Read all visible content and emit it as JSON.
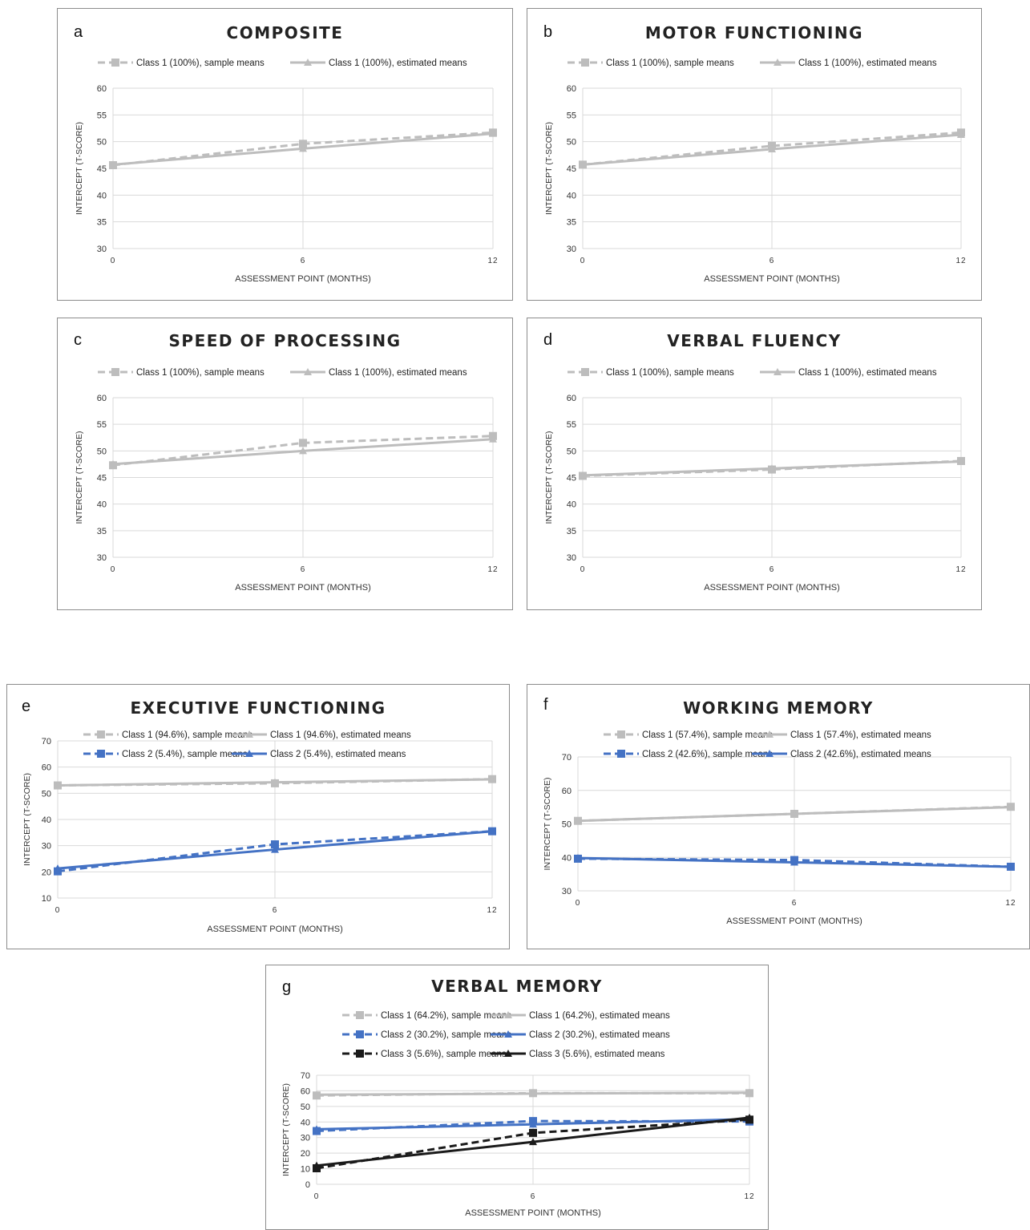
{
  "colors": {
    "class1": "#bdbdbd",
    "class2": "#4472c4",
    "class3": "#1a1a1a",
    "grid": "#d9d9d9"
  },
  "chart_data": [
    {
      "id": "a",
      "panel_label": "a",
      "type": "line",
      "title": "COMPOSITE",
      "xlabel": "ASSESSMENT POINT (MONTHS)",
      "ylabel": "INTERCEPT (T-SCORE)",
      "x": [
        0,
        6,
        12
      ],
      "ylim": [
        30,
        60
      ],
      "yticks": [
        30,
        35,
        40,
        45,
        50,
        55,
        60
      ],
      "grid": true,
      "legend_position": "top",
      "series": [
        {
          "name": "Class 1 (100%), sample means",
          "values": [
            45.6,
            49.6,
            51.7
          ],
          "color": "#bdbdbd",
          "dashed": true,
          "marker": "square"
        },
        {
          "name": "Class 1 (100%), estimated means",
          "values": [
            45.7,
            48.7,
            51.5
          ],
          "color": "#bdbdbd",
          "dashed": false,
          "marker": "triangle"
        }
      ]
    },
    {
      "id": "b",
      "panel_label": "b",
      "type": "line",
      "title": "MOTOR FUNCTIONING",
      "xlabel": "ASSESSMENT POINT (MONTHS)",
      "ylabel": "INTERCEPT (T-SCORE)",
      "x": [
        0,
        6,
        12
      ],
      "ylim": [
        30,
        60
      ],
      "yticks": [
        30,
        35,
        40,
        45,
        50,
        55,
        60
      ],
      "grid": true,
      "legend_position": "top",
      "series": [
        {
          "name": "Class 1 (100%), sample means",
          "values": [
            45.7,
            49.2,
            51.7
          ],
          "color": "#bdbdbd",
          "dashed": true,
          "marker": "square"
        },
        {
          "name": "Class 1 (100%), estimated means",
          "values": [
            45.7,
            48.6,
            51.3
          ],
          "color": "#bdbdbd",
          "dashed": false,
          "marker": "triangle"
        }
      ]
    },
    {
      "id": "c",
      "panel_label": "c",
      "type": "line",
      "title": "SPEED OF PROCESSING",
      "xlabel": "ASSESSMENT POINT (MONTHS)",
      "ylabel": "INTERCEPT (T-SCORE)",
      "x": [
        0,
        6,
        12
      ],
      "ylim": [
        30,
        60
      ],
      "yticks": [
        30,
        35,
        40,
        45,
        50,
        55,
        60
      ],
      "grid": true,
      "legend_position": "top",
      "series": [
        {
          "name": "Class 1 (100%), sample means",
          "values": [
            47.3,
            51.5,
            52.8
          ],
          "color": "#bdbdbd",
          "dashed": true,
          "marker": "square"
        },
        {
          "name": "Class 1 (100%), estimated means",
          "values": [
            47.5,
            50.0,
            52.2
          ],
          "color": "#bdbdbd",
          "dashed": false,
          "marker": "triangle"
        }
      ]
    },
    {
      "id": "d",
      "panel_label": "d",
      "type": "line",
      "title": "VERBAL FLUENCY",
      "xlabel": "ASSESSMENT POINT (MONTHS)",
      "ylabel": "INTERCEPT (T-SCORE)",
      "x": [
        0,
        6,
        12
      ],
      "ylim": [
        30,
        60
      ],
      "yticks": [
        30,
        35,
        40,
        45,
        50,
        55,
        60
      ],
      "grid": true,
      "legend_position": "top",
      "series": [
        {
          "name": "Class 1 (100%), sample means",
          "values": [
            45.3,
            46.5,
            48.1
          ],
          "color": "#bdbdbd",
          "dashed": true,
          "marker": "square"
        },
        {
          "name": "Class 1 (100%), estimated means",
          "values": [
            45.4,
            46.7,
            48.0
          ],
          "color": "#bdbdbd",
          "dashed": false,
          "marker": "triangle"
        }
      ]
    },
    {
      "id": "e",
      "panel_label": "e",
      "type": "line",
      "title": "EXECUTIVE FUNCTIONING",
      "xlabel": "ASSESSMENT POINT (MONTHS)",
      "ylabel": "INTERCEPT (T-SCORE)",
      "x": [
        0,
        6,
        12
      ],
      "ylim": [
        10,
        70
      ],
      "yticks": [
        10,
        20,
        30,
        40,
        50,
        60,
        70
      ],
      "grid": true,
      "legend_position": "top",
      "series": [
        {
          "name": "Class 1 (94.6%), sample means",
          "values": [
            53.0,
            53.8,
            55.4
          ],
          "color": "#bdbdbd",
          "dashed": true,
          "marker": "square"
        },
        {
          "name": "Class 1 (94.6%), estimated means",
          "values": [
            53.0,
            54.2,
            55.3
          ],
          "color": "#bdbdbd",
          "dashed": false,
          "marker": "triangle"
        },
        {
          "name": "Class 2 (5.4%), sample means",
          "values": [
            20.2,
            30.5,
            35.5
          ],
          "color": "#4472c4",
          "dashed": true,
          "marker": "square"
        },
        {
          "name": "Class 2 (5.4%), estimated means",
          "values": [
            21.3,
            28.5,
            35.5
          ],
          "color": "#4472c4",
          "dashed": false,
          "marker": "triangle"
        }
      ]
    },
    {
      "id": "f",
      "panel_label": "f",
      "type": "line",
      "title": "WORKING MEMORY",
      "xlabel": "ASSESSMENT POINT (MONTHS)",
      "ylabel": "INTERCEPT (T-SCORE)",
      "x": [
        0,
        6,
        12
      ],
      "ylim": [
        30,
        70
      ],
      "yticks": [
        30,
        40,
        50,
        60,
        70
      ],
      "grid": true,
      "legend_position": "top",
      "series": [
        {
          "name": "Class 1 (57.4%), sample means",
          "values": [
            50.9,
            53.0,
            55.1
          ],
          "color": "#bdbdbd",
          "dashed": true,
          "marker": "square"
        },
        {
          "name": "Class 1 (57.4%), estimated means",
          "values": [
            50.9,
            53.0,
            55.0
          ],
          "color": "#bdbdbd",
          "dashed": false,
          "marker": "triangle"
        },
        {
          "name": "Class 2 (42.6%), sample means",
          "values": [
            39.6,
            39.2,
            37.2
          ],
          "color": "#4472c4",
          "dashed": true,
          "marker": "square"
        },
        {
          "name": "Class 2 (42.6%), estimated means",
          "values": [
            39.8,
            38.5,
            37.2
          ],
          "color": "#4472c4",
          "dashed": false,
          "marker": "triangle"
        }
      ]
    },
    {
      "id": "g",
      "panel_label": "g",
      "type": "line",
      "title": "VERBAL MEMORY",
      "xlabel": "ASSESSMENT POINT (MONTHS)",
      "ylabel": "INTERCEPT (T-SCORE)",
      "x": [
        0,
        6,
        12
      ],
      "ylim": [
        0,
        70
      ],
      "yticks": [
        0,
        10,
        20,
        30,
        40,
        50,
        60,
        70
      ],
      "grid": true,
      "legend_position": "top",
      "series": [
        {
          "name": "Class 1 (64.2%), sample means",
          "values": [
            57.0,
            58.5,
            58.5
          ],
          "color": "#bdbdbd",
          "dashed": true,
          "marker": "square"
        },
        {
          "name": "Class 1 (64.2%), estimated means",
          "values": [
            57.5,
            58.2,
            58.8
          ],
          "color": "#bdbdbd",
          "dashed": false,
          "marker": "triangle"
        },
        {
          "name": "Class 2 (30.2%), sample means",
          "values": [
            34.2,
            40.6,
            40.3
          ],
          "color": "#4472c4",
          "dashed": true,
          "marker": "square"
        },
        {
          "name": "Class 2 (30.2%), estimated means",
          "values": [
            35.3,
            38.5,
            41.8
          ],
          "color": "#4472c4",
          "dashed": false,
          "marker": "triangle"
        },
        {
          "name": "Class 3 (5.6%), sample means",
          "values": [
            10.3,
            33.0,
            41.5
          ],
          "color": "#1a1a1a",
          "dashed": true,
          "marker": "square"
        },
        {
          "name": "Class 3 (5.6%), estimated means",
          "values": [
            12.0,
            27.2,
            42.8
          ],
          "color": "#1a1a1a",
          "dashed": false,
          "marker": "triangle"
        }
      ]
    }
  ]
}
